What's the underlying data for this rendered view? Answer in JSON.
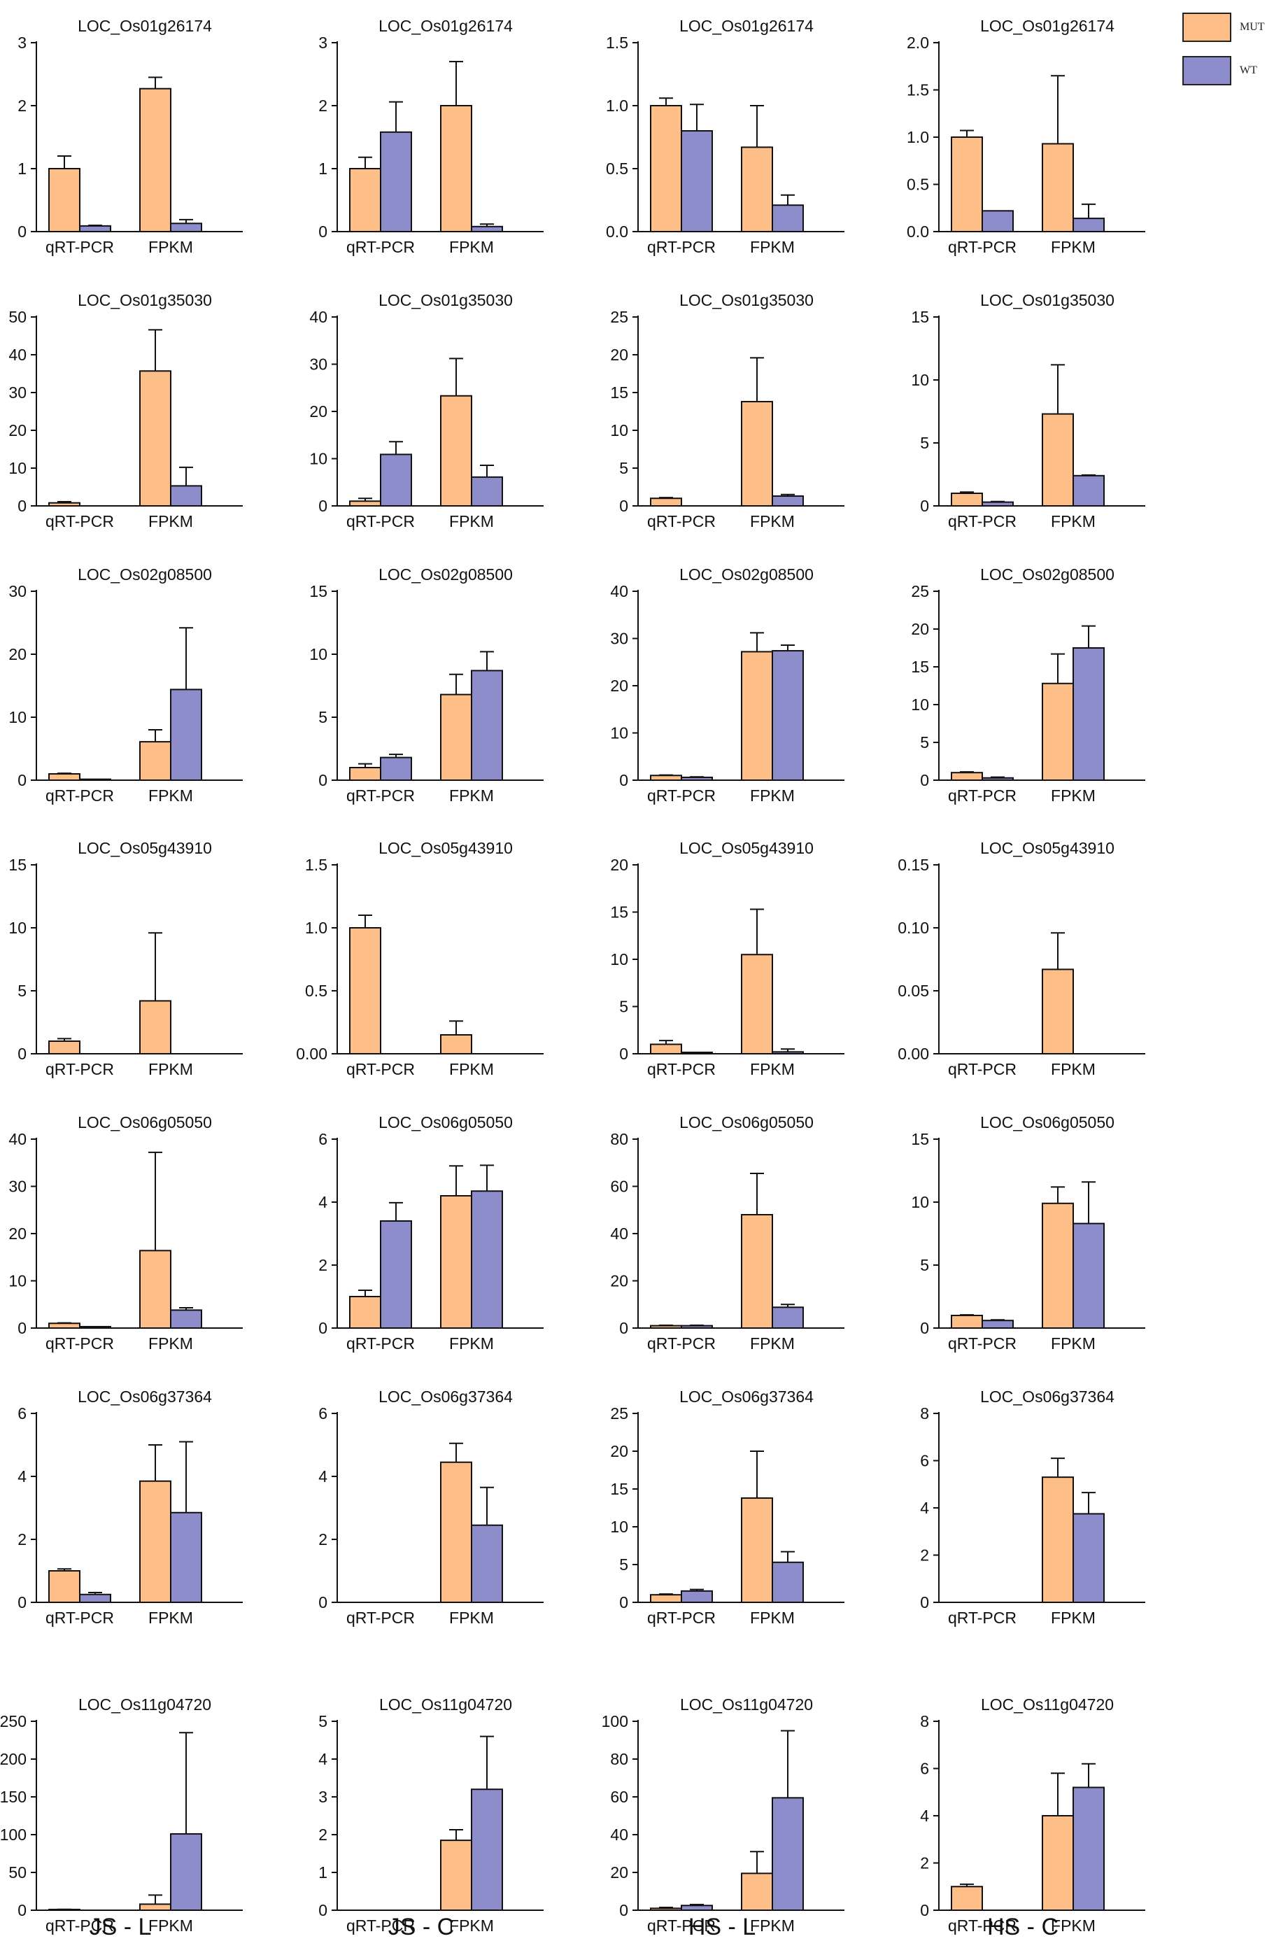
{
  "legend": {
    "mut_label": "MUT",
    "wt_label": "WT",
    "mut_color": "#FDBF87",
    "wt_color": "#8E8DCB"
  },
  "column_labels": [
    "JS - L",
    "JS - C",
    "HS - L",
    "HS - C"
  ],
  "chart_data": [
    {
      "type": "bar",
      "title": "LOC_Os01g26174",
      "condition": "JS - L",
      "categories": [
        "qRT-PCR",
        "FPKM"
      ],
      "ylim": [
        0,
        3
      ],
      "yticks": [
        "0",
        "1",
        "2",
        "3"
      ],
      "series": [
        {
          "name": "MUT",
          "values": [
            1.0,
            2.27
          ],
          "errors": [
            0.2,
            0.18
          ]
        },
        {
          "name": "WT",
          "values": [
            0.09,
            0.13
          ],
          "errors": [
            0.01,
            0.06
          ]
        }
      ]
    },
    {
      "type": "bar",
      "title": "LOC_Os01g26174",
      "condition": "JS - C",
      "categories": [
        "qRT-PCR",
        "FPKM"
      ],
      "ylim": [
        0,
        3
      ],
      "yticks": [
        "0",
        "1",
        "2",
        "3"
      ],
      "series": [
        {
          "name": "MUT",
          "values": [
            1.0,
            2.0
          ],
          "errors": [
            0.18,
            0.7
          ]
        },
        {
          "name": "WT",
          "values": [
            1.58,
            0.08
          ],
          "errors": [
            0.48,
            0.04
          ]
        }
      ]
    },
    {
      "type": "bar",
      "title": "LOC_Os01g26174",
      "condition": "HS - L",
      "categories": [
        "qRT-PCR",
        "FPKM"
      ],
      "ylim": [
        0,
        1.5
      ],
      "yticks": [
        "0.0",
        "0.5",
        "1.0",
        "1.5"
      ],
      "series": [
        {
          "name": "MUT",
          "values": [
            1.0,
            0.67
          ],
          "errors": [
            0.06,
            0.33
          ]
        },
        {
          "name": "WT",
          "values": [
            0.8,
            0.21
          ],
          "errors": [
            0.21,
            0.08
          ]
        }
      ]
    },
    {
      "type": "bar",
      "title": "LOC_Os01g26174",
      "condition": "HS - C",
      "categories": [
        "qRT-PCR",
        "FPKM"
      ],
      "ylim": [
        0,
        2
      ],
      "yticks": [
        "0.0",
        "0.5",
        "1.0",
        "1.5",
        "2.0"
      ],
      "series": [
        {
          "name": "MUT",
          "values": [
            1.0,
            0.93
          ],
          "errors": [
            0.07,
            0.72
          ]
        },
        {
          "name": "WT",
          "values": [
            0.22,
            0.14
          ],
          "errors": [
            0.0,
            0.15
          ]
        }
      ]
    },
    {
      "type": "bar",
      "title": "LOC_Os01g35030",
      "condition": "JS - L",
      "categories": [
        "qRT-PCR",
        "FPKM"
      ],
      "ylim": [
        0,
        50
      ],
      "yticks": [
        "0",
        "10",
        "20",
        "30",
        "40",
        "50"
      ],
      "series": [
        {
          "name": "MUT",
          "values": [
            0.8,
            35.7
          ],
          "errors": [
            0.3,
            10.9
          ]
        },
        {
          "name": "WT",
          "values": [
            0.0,
            5.3
          ],
          "errors": [
            0.0,
            4.9
          ]
        }
      ]
    },
    {
      "type": "bar",
      "title": "LOC_Os01g35030",
      "condition": "JS - C",
      "categories": [
        "qRT-PCR",
        "FPKM"
      ],
      "ylim": [
        0,
        40
      ],
      "yticks": [
        "0",
        "10",
        "20",
        "30",
        "40"
      ],
      "series": [
        {
          "name": "MUT",
          "values": [
            1.0,
            23.3
          ],
          "errors": [
            0.6,
            7.9
          ]
        },
        {
          "name": "WT",
          "values": [
            10.9,
            6.1
          ],
          "errors": [
            2.7,
            2.5
          ]
        }
      ]
    },
    {
      "type": "bar",
      "title": "LOC_Os01g35030",
      "condition": "HS - L",
      "categories": [
        "qRT-PCR",
        "FPKM"
      ],
      "ylim": [
        0,
        25
      ],
      "yticks": [
        "0",
        "5",
        "10",
        "15",
        "20",
        "25"
      ],
      "series": [
        {
          "name": "MUT",
          "values": [
            1.0,
            13.8
          ],
          "errors": [
            0.1,
            5.8
          ]
        },
        {
          "name": "WT",
          "values": [
            0.0,
            1.3
          ],
          "errors": [
            0.0,
            0.2
          ]
        }
      ]
    },
    {
      "type": "bar",
      "title": "LOC_Os01g35030",
      "condition": "HS - C",
      "categories": [
        "qRT-PCR",
        "FPKM"
      ],
      "ylim": [
        0,
        15
      ],
      "yticks": [
        "0",
        "5",
        "10",
        "15"
      ],
      "series": [
        {
          "name": "MUT",
          "values": [
            1.0,
            7.3
          ],
          "errors": [
            0.1,
            3.9
          ]
        },
        {
          "name": "WT",
          "values": [
            0.3,
            2.4
          ],
          "errors": [
            0.05,
            0.05
          ]
        }
      ]
    },
    {
      "type": "bar",
      "title": "LOC_Os02g08500",
      "condition": "JS - L",
      "categories": [
        "qRT-PCR",
        "FPKM"
      ],
      "ylim": [
        0,
        30
      ],
      "yticks": [
        "0",
        "10",
        "20",
        "30"
      ],
      "series": [
        {
          "name": "MUT",
          "values": [
            1.0,
            6.1
          ],
          "errors": [
            0.1,
            1.9
          ]
        },
        {
          "name": "WT",
          "values": [
            0.15,
            14.4
          ],
          "errors": [
            0.0,
            9.8
          ]
        }
      ]
    },
    {
      "type": "bar",
      "title": "LOC_Os02g08500",
      "condition": "JS - C",
      "categories": [
        "qRT-PCR",
        "FPKM"
      ],
      "ylim": [
        0,
        15
      ],
      "yticks": [
        "0",
        "5",
        "10",
        "15"
      ],
      "series": [
        {
          "name": "MUT",
          "values": [
            1.0,
            6.8
          ],
          "errors": [
            0.3,
            1.6
          ]
        },
        {
          "name": "WT",
          "values": [
            1.8,
            8.7
          ],
          "errors": [
            0.25,
            1.5
          ]
        }
      ]
    },
    {
      "type": "bar",
      "title": "LOC_Os02g08500",
      "condition": "HS - L",
      "categories": [
        "qRT-PCR",
        "FPKM"
      ],
      "ylim": [
        0,
        40
      ],
      "yticks": [
        "0",
        "10",
        "20",
        "30",
        "40"
      ],
      "series": [
        {
          "name": "MUT",
          "values": [
            1.0,
            27.2
          ],
          "errors": [
            0.1,
            4.0
          ]
        },
        {
          "name": "WT",
          "values": [
            0.6,
            27.4
          ],
          "errors": [
            0.1,
            1.2
          ]
        }
      ]
    },
    {
      "type": "bar",
      "title": "LOC_Os02g08500",
      "condition": "HS - C",
      "categories": [
        "qRT-PCR",
        "FPKM"
      ],
      "ylim": [
        0,
        25
      ],
      "yticks": [
        "0",
        "5",
        "10",
        "15",
        "20",
        "25"
      ],
      "series": [
        {
          "name": "MUT",
          "values": [
            1.0,
            12.8
          ],
          "errors": [
            0.1,
            3.9
          ]
        },
        {
          "name": "WT",
          "values": [
            0.3,
            17.5
          ],
          "errors": [
            0.1,
            2.9
          ]
        }
      ]
    },
    {
      "type": "bar",
      "title": "LOC_Os05g43910",
      "condition": "JS - L",
      "categories": [
        "qRT-PCR",
        "FPKM"
      ],
      "ylim": [
        0,
        15
      ],
      "yticks": [
        "0",
        "5",
        "10",
        "15"
      ],
      "series": [
        {
          "name": "MUT",
          "values": [
            1.0,
            4.2
          ],
          "errors": [
            0.2,
            5.4
          ]
        },
        {
          "name": "WT",
          "values": [
            0.0,
            0.0
          ],
          "errors": [
            0.0,
            0.0
          ]
        }
      ]
    },
    {
      "type": "bar",
      "title": "LOC_Os05g43910",
      "condition": "JS - C",
      "categories": [
        "qRT-PCR",
        "FPKM"
      ],
      "ylim": [
        0,
        1.5
      ],
      "yticks": [
        "0.00",
        "0.5",
        "1.0",
        "1.5"
      ],
      "series": [
        {
          "name": "MUT",
          "values": [
            1.0,
            0.15
          ],
          "errors": [
            0.1,
            0.11
          ]
        },
        {
          "name": "WT",
          "values": [
            0.0,
            0.0
          ],
          "errors": [
            0.0,
            0.0
          ]
        }
      ]
    },
    {
      "type": "bar",
      "title": "LOC_Os05g43910",
      "condition": "HS - L",
      "categories": [
        "qRT-PCR",
        "FPKM"
      ],
      "ylim": [
        0,
        20
      ],
      "yticks": [
        "0",
        "5",
        "10",
        "15",
        "20"
      ],
      "series": [
        {
          "name": "MUT",
          "values": [
            1.0,
            10.5
          ],
          "errors": [
            0.4,
            4.8
          ]
        },
        {
          "name": "WT",
          "values": [
            0.15,
            0.2
          ],
          "errors": [
            0.0,
            0.3
          ]
        }
      ]
    },
    {
      "type": "bar",
      "title": "LOC_Os05g43910",
      "condition": "HS - C",
      "categories": [
        "qRT-PCR",
        "FPKM"
      ],
      "ylim": [
        0,
        0.15
      ],
      "yticks": [
        "0.00",
        "0.05",
        "0.10",
        "0.15"
      ],
      "series": [
        {
          "name": "MUT",
          "values": [
            0.0,
            0.067
          ],
          "errors": [
            0.0,
            0.029
          ]
        },
        {
          "name": "WT",
          "values": [
            0.0,
            0.0
          ],
          "errors": [
            0.0,
            0.0
          ]
        }
      ]
    },
    {
      "type": "bar",
      "title": "LOC_Os06g05050",
      "condition": "JS - L",
      "categories": [
        "qRT-PCR",
        "FPKM"
      ],
      "ylim": [
        0,
        40
      ],
      "yticks": [
        "0",
        "10",
        "20",
        "30",
        "40"
      ],
      "series": [
        {
          "name": "MUT",
          "values": [
            1.0,
            16.4
          ],
          "errors": [
            0.1,
            20.8
          ]
        },
        {
          "name": "WT",
          "values": [
            0.3,
            3.8
          ],
          "errors": [
            0.0,
            0.5
          ]
        }
      ]
    },
    {
      "type": "bar",
      "title": "LOC_Os06g05050",
      "condition": "JS - C",
      "categories": [
        "qRT-PCR",
        "FPKM"
      ],
      "ylim": [
        0,
        6
      ],
      "yticks": [
        "0",
        "2",
        "4",
        "6"
      ],
      "series": [
        {
          "name": "MUT",
          "values": [
            1.0,
            4.2
          ],
          "errors": [
            0.2,
            0.95
          ]
        },
        {
          "name": "WT",
          "values": [
            3.4,
            4.35
          ],
          "errors": [
            0.58,
            0.82
          ]
        }
      ]
    },
    {
      "type": "bar",
      "title": "LOC_Os06g05050",
      "condition": "HS - L",
      "categories": [
        "qRT-PCR",
        "FPKM"
      ],
      "ylim": [
        0,
        80
      ],
      "yticks": [
        "0",
        "20",
        "40",
        "60",
        "80"
      ],
      "series": [
        {
          "name": "MUT",
          "values": [
            1.0,
            48.0
          ],
          "errors": [
            0.2,
            17.5
          ]
        },
        {
          "name": "WT",
          "values": [
            1.0,
            8.8
          ],
          "errors": [
            0.2,
            1.2
          ]
        }
      ]
    },
    {
      "type": "bar",
      "title": "LOC_Os06g05050",
      "condition": "HS - C",
      "categories": [
        "qRT-PCR",
        "FPKM"
      ],
      "ylim": [
        0,
        15
      ],
      "yticks": [
        "0",
        "5",
        "10",
        "15"
      ],
      "series": [
        {
          "name": "MUT",
          "values": [
            1.0,
            9.9
          ],
          "errors": [
            0.05,
            1.3
          ]
        },
        {
          "name": "WT",
          "values": [
            0.6,
            8.3
          ],
          "errors": [
            0.05,
            3.3
          ]
        }
      ]
    },
    {
      "type": "bar",
      "title": "LOC_Os06g37364",
      "condition": "JS - L",
      "categories": [
        "qRT-PCR",
        "FPKM"
      ],
      "ylim": [
        0,
        6
      ],
      "yticks": [
        "0",
        "2",
        "4",
        "6"
      ],
      "series": [
        {
          "name": "MUT",
          "values": [
            1.0,
            3.85
          ],
          "errors": [
            0.06,
            1.15
          ]
        },
        {
          "name": "WT",
          "values": [
            0.25,
            2.85
          ],
          "errors": [
            0.06,
            2.25
          ]
        }
      ]
    },
    {
      "type": "bar",
      "title": "LOC_Os06g37364",
      "condition": "JS - C",
      "categories": [
        "qRT-PCR",
        "FPKM"
      ],
      "ylim": [
        0,
        6
      ],
      "yticks": [
        "0",
        "2",
        "4",
        "6"
      ],
      "series": [
        {
          "name": "MUT",
          "values": [
            0.0,
            4.45
          ],
          "errors": [
            0.0,
            0.6
          ]
        },
        {
          "name": "WT",
          "values": [
            0.0,
            2.45
          ],
          "errors": [
            0.0,
            1.2
          ]
        }
      ]
    },
    {
      "type": "bar",
      "title": "LOC_Os06g37364",
      "condition": "HS - L",
      "categories": [
        "qRT-PCR",
        "FPKM"
      ],
      "ylim": [
        0,
        25
      ],
      "yticks": [
        "0",
        "5",
        "10",
        "15",
        "20",
        "25"
      ],
      "series": [
        {
          "name": "MUT",
          "values": [
            1.0,
            13.8
          ],
          "errors": [
            0.1,
            6.2
          ]
        },
        {
          "name": "WT",
          "values": [
            1.5,
            5.3
          ],
          "errors": [
            0.2,
            1.4
          ]
        }
      ]
    },
    {
      "type": "bar",
      "title": "LOC_Os06g37364",
      "condition": "HS - C",
      "categories": [
        "qRT-PCR",
        "FPKM"
      ],
      "ylim": [
        0,
        8
      ],
      "yticks": [
        "0",
        "2",
        "4",
        "6",
        "8"
      ],
      "series": [
        {
          "name": "MUT",
          "values": [
            0.0,
            5.3
          ],
          "errors": [
            0.0,
            0.8
          ]
        },
        {
          "name": "WT",
          "values": [
            0.0,
            3.75
          ],
          "errors": [
            0.0,
            0.9
          ]
        }
      ]
    },
    {
      "type": "bar",
      "title": "LOC_Os11g04720",
      "condition": "JS - L",
      "categories": [
        "qRT-PCR",
        "FPKM"
      ],
      "ylim": [
        0,
        250
      ],
      "yticks": [
        "0",
        "50",
        "100",
        "150",
        "200",
        "250"
      ],
      "series": [
        {
          "name": "MUT",
          "values": [
            1.0,
            8.0
          ],
          "errors": [
            0.2,
            12.0
          ]
        },
        {
          "name": "WT",
          "values": [
            0.0,
            101.0
          ],
          "errors": [
            0.0,
            134.0
          ]
        }
      ]
    },
    {
      "type": "bar",
      "title": "LOC_Os11g04720",
      "condition": "JS - C",
      "categories": [
        "qRT-PCR",
        "FPKM"
      ],
      "ylim": [
        0,
        5
      ],
      "yticks": [
        "0",
        "1",
        "2",
        "3",
        "4",
        "5"
      ],
      "series": [
        {
          "name": "MUT",
          "values": [
            0.0,
            1.85
          ],
          "errors": [
            0.0,
            0.28
          ]
        },
        {
          "name": "WT",
          "values": [
            0.0,
            3.2
          ],
          "errors": [
            0.0,
            1.4
          ]
        }
      ]
    },
    {
      "type": "bar",
      "title": "LOC_Os11g04720",
      "condition": "HS - L",
      "categories": [
        "qRT-PCR",
        "FPKM"
      ],
      "ylim": [
        0,
        100
      ],
      "yticks": [
        "0",
        "20",
        "40",
        "60",
        "80",
        "100"
      ],
      "series": [
        {
          "name": "MUT",
          "values": [
            1.0,
            19.5
          ],
          "errors": [
            0.5,
            11.5
          ]
        },
        {
          "name": "WT",
          "values": [
            2.5,
            59.5
          ],
          "errors": [
            0.5,
            35.5
          ]
        }
      ]
    },
    {
      "type": "bar",
      "title": "LOC_Os11g04720",
      "condition": "HS - C",
      "categories": [
        "qRT-PCR",
        "FPKM"
      ],
      "ylim": [
        0,
        8
      ],
      "yticks": [
        "0",
        "2",
        "4",
        "6",
        "8"
      ],
      "series": [
        {
          "name": "MUT",
          "values": [
            1.0,
            4.0
          ],
          "errors": [
            0.1,
            1.8
          ]
        },
        {
          "name": "WT",
          "values": [
            0.0,
            5.2
          ],
          "errors": [
            0.0,
            1.0
          ]
        }
      ]
    }
  ]
}
